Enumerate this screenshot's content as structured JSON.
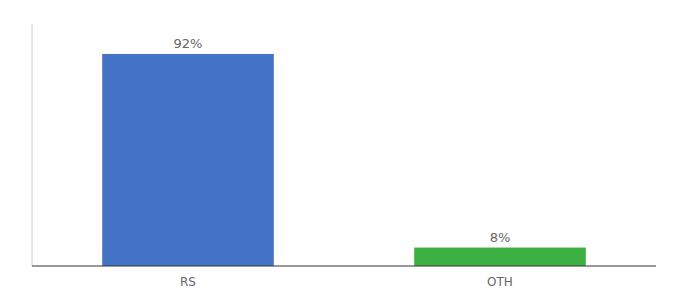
{
  "chart_data": {
    "type": "bar",
    "categories": [
      "RS",
      "OTH"
    ],
    "values": [
      92,
      8
    ],
    "value_labels": [
      "92%",
      "8%"
    ],
    "colors": [
      "#4472c4",
      "#3cb043"
    ],
    "ylim": [
      0,
      105
    ],
    "data_labels": true,
    "tick_labels": "x"
  }
}
